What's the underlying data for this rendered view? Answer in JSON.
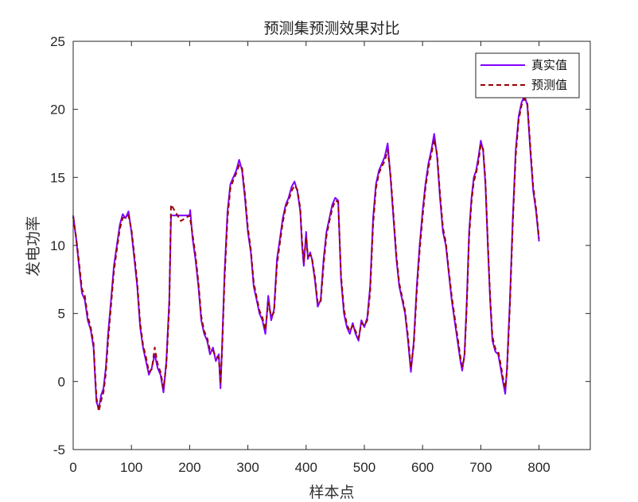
{
  "chart_data": {
    "type": "line",
    "title": "预测集预测效果对比",
    "xlabel": "样本点",
    "ylabel": "发电功率",
    "xlim": [
      0,
      888
    ],
    "ylim": [
      -5,
      25
    ],
    "xticks": [
      0,
      100,
      200,
      300,
      400,
      500,
      600,
      700,
      800
    ],
    "yticks": [
      -5,
      0,
      5,
      10,
      15,
      20,
      25
    ],
    "grid": false,
    "legend_position": "top-right",
    "series": [
      {
        "name": "真实值",
        "color": "#8000ff",
        "style": "solid",
        "points": [
          [
            0,
            12.2
          ],
          [
            5,
            10.5
          ],
          [
            10,
            8.5
          ],
          [
            15,
            6.5
          ],
          [
            20,
            6
          ],
          [
            25,
            4.5
          ],
          [
            30,
            3.8
          ],
          [
            35,
            2.5
          ],
          [
            38,
            0
          ],
          [
            40,
            -1.5
          ],
          [
            44,
            -2
          ],
          [
            48,
            -1
          ],
          [
            52,
            -0.5
          ],
          [
            56,
            1
          ],
          [
            60,
            3.5
          ],
          [
            65,
            6
          ],
          [
            70,
            8.5
          ],
          [
            75,
            10
          ],
          [
            80,
            11.5
          ],
          [
            85,
            12.3
          ],
          [
            90,
            12
          ],
          [
            95,
            12.5
          ],
          [
            100,
            11
          ],
          [
            105,
            9
          ],
          [
            110,
            7
          ],
          [
            115,
            4
          ],
          [
            120,
            2.5
          ],
          [
            125,
            1.5
          ],
          [
            130,
            0.5
          ],
          [
            135,
            1
          ],
          [
            140,
            2
          ],
          [
            145,
            1
          ],
          [
            150,
            0.5
          ],
          [
            155,
            -0.8
          ],
          [
            160,
            1.5
          ],
          [
            165,
            6
          ],
          [
            168,
            12.2
          ],
          [
            200,
            12.2
          ],
          [
            201,
            12.6
          ],
          [
            205,
            10.5
          ],
          [
            210,
            9
          ],
          [
            215,
            7
          ],
          [
            220,
            4.5
          ],
          [
            225,
            3.5
          ],
          [
            230,
            3
          ],
          [
            235,
            2
          ],
          [
            240,
            2.5
          ],
          [
            245,
            1.5
          ],
          [
            250,
            2
          ],
          [
            253,
            -0.5
          ],
          [
            256,
            3
          ],
          [
            260,
            8
          ],
          [
            265,
            12.5
          ],
          [
            270,
            14.5
          ],
          [
            275,
            15
          ],
          [
            280,
            15.5
          ],
          [
            285,
            16.3
          ],
          [
            290,
            15.5
          ],
          [
            295,
            13.5
          ],
          [
            300,
            11
          ],
          [
            305,
            9.5
          ],
          [
            310,
            7
          ],
          [
            315,
            6
          ],
          [
            320,
            5
          ],
          [
            325,
            4.5
          ],
          [
            330,
            3.5
          ],
          [
            335,
            6.3
          ],
          [
            340,
            4.5
          ],
          [
            345,
            5.3
          ],
          [
            350,
            9
          ],
          [
            355,
            10.5
          ],
          [
            360,
            12
          ],
          [
            365,
            13
          ],
          [
            370,
            13.5
          ],
          [
            375,
            14.3
          ],
          [
            380,
            14.7
          ],
          [
            385,
            14
          ],
          [
            390,
            12.5
          ],
          [
            393,
            10
          ],
          [
            396,
            8.5
          ],
          [
            400,
            11
          ],
          [
            403,
            9
          ],
          [
            407,
            9.5
          ],
          [
            410,
            9
          ],
          [
            415,
            7.5
          ],
          [
            420,
            5.5
          ],
          [
            425,
            6
          ],
          [
            430,
            9
          ],
          [
            435,
            11
          ],
          [
            440,
            12
          ],
          [
            445,
            13
          ],
          [
            450,
            13.5
          ],
          [
            455,
            13.3
          ],
          [
            460,
            7.5
          ],
          [
            465,
            5
          ],
          [
            470,
            4
          ],
          [
            475,
            3.5
          ],
          [
            480,
            4.3
          ],
          [
            485,
            3.5
          ],
          [
            490,
            3
          ],
          [
            495,
            4.5
          ],
          [
            500,
            4
          ],
          [
            505,
            4.7
          ],
          [
            510,
            7
          ],
          [
            515,
            12
          ],
          [
            520,
            14.5
          ],
          [
            525,
            15.5
          ],
          [
            530,
            16
          ],
          [
            535,
            16.5
          ],
          [
            540,
            17.5
          ],
          [
            545,
            15
          ],
          [
            550,
            12
          ],
          [
            555,
            9
          ],
          [
            560,
            7
          ],
          [
            565,
            6
          ],
          [
            570,
            5
          ],
          [
            575,
            3
          ],
          [
            580,
            0.7
          ],
          [
            585,
            3
          ],
          [
            590,
            7
          ],
          [
            595,
            10
          ],
          [
            600,
            12.5
          ],
          [
            605,
            14.5
          ],
          [
            610,
            16
          ],
          [
            615,
            17
          ],
          [
            620,
            18.2
          ],
          [
            625,
            16.5
          ],
          [
            630,
            13.5
          ],
          [
            635,
            11
          ],
          [
            640,
            10
          ],
          [
            645,
            8
          ],
          [
            650,
            6
          ],
          [
            655,
            4.5
          ],
          [
            660,
            3
          ],
          [
            665,
            1.5
          ],
          [
            668,
            0.8
          ],
          [
            672,
            2
          ],
          [
            676,
            6
          ],
          [
            680,
            11
          ],
          [
            684,
            13.5
          ],
          [
            688,
            15
          ],
          [
            692,
            15.5
          ],
          [
            696,
            16.5
          ],
          [
            700,
            17.7
          ],
          [
            704,
            17
          ],
          [
            708,
            14.5
          ],
          [
            712,
            10
          ],
          [
            716,
            6
          ],
          [
            720,
            3
          ],
          [
            725,
            2.2
          ],
          [
            730,
            2
          ],
          [
            734,
            1
          ],
          [
            738,
            0
          ],
          [
            742,
            -0.9
          ],
          [
            745,
            1
          ],
          [
            750,
            6
          ],
          [
            755,
            12
          ],
          [
            760,
            17
          ],
          [
            765,
            19.5
          ],
          [
            770,
            20.5
          ],
          [
            775,
            21
          ],
          [
            780,
            20.3
          ],
          [
            785,
            17
          ],
          [
            790,
            14
          ],
          [
            795,
            12.5
          ],
          [
            800,
            10.3
          ]
        ]
      },
      {
        "name": "预测值",
        "color": "#990000",
        "style": "dashed",
        "points": [
          [
            0,
            12.1
          ],
          [
            5,
            10.6
          ],
          [
            10,
            8.8
          ],
          [
            15,
            6.8
          ],
          [
            20,
            6.3
          ],
          [
            25,
            4.8
          ],
          [
            30,
            4
          ],
          [
            35,
            2.8
          ],
          [
            38,
            0.3
          ],
          [
            40,
            -1.2
          ],
          [
            44,
            -2.2
          ],
          [
            48,
            -1.4
          ],
          [
            52,
            -0.8
          ],
          [
            56,
            0.6
          ],
          [
            60,
            3
          ],
          [
            65,
            5.6
          ],
          [
            70,
            8.1
          ],
          [
            75,
            9.7
          ],
          [
            80,
            11.2
          ],
          [
            85,
            12
          ],
          [
            90,
            12.1
          ],
          [
            95,
            12.2
          ],
          [
            100,
            11.2
          ],
          [
            105,
            9.3
          ],
          [
            110,
            7.3
          ],
          [
            115,
            4.3
          ],
          [
            120,
            2.7
          ],
          [
            125,
            1.8
          ],
          [
            130,
            0.7
          ],
          [
            135,
            0.9
          ],
          [
            140,
            2.5
          ],
          [
            145,
            1.3
          ],
          [
            150,
            0.7
          ],
          [
            155,
            -0.5
          ],
          [
            160,
            1.2
          ],
          [
            165,
            5.5
          ],
          [
            168,
            13
          ],
          [
            175,
            12.5
          ],
          [
            185,
            11.8
          ],
          [
            200,
            12.2
          ],
          [
            205,
            10.8
          ],
          [
            210,
            9.3
          ],
          [
            215,
            7.3
          ],
          [
            220,
            4.8
          ],
          [
            225,
            3.7
          ],
          [
            230,
            3.2
          ],
          [
            235,
            2.3
          ],
          [
            240,
            2.3
          ],
          [
            245,
            1.8
          ],
          [
            250,
            1.8
          ],
          [
            253,
            -0.2
          ],
          [
            256,
            2.6
          ],
          [
            260,
            7.5
          ],
          [
            265,
            12
          ],
          [
            270,
            14.2
          ],
          [
            275,
            14.8
          ],
          [
            280,
            15.3
          ],
          [
            285,
            15.9
          ],
          [
            290,
            15.7
          ],
          [
            295,
            13.8
          ],
          [
            300,
            11.3
          ],
          [
            305,
            9.7
          ],
          [
            310,
            7.3
          ],
          [
            315,
            6.2
          ],
          [
            320,
            5.2
          ],
          [
            325,
            4.7
          ],
          [
            330,
            3.8
          ],
          [
            335,
            5.8
          ],
          [
            340,
            4.8
          ],
          [
            345,
            5.1
          ],
          [
            350,
            8.6
          ],
          [
            355,
            10.2
          ],
          [
            360,
            11.7
          ],
          [
            365,
            12.8
          ],
          [
            370,
            13.3
          ],
          [
            375,
            14
          ],
          [
            380,
            14.4
          ],
          [
            385,
            14.1
          ],
          [
            390,
            12.7
          ],
          [
            393,
            10.3
          ],
          [
            396,
            8.8
          ],
          [
            400,
            10.6
          ],
          [
            403,
            9.2
          ],
          [
            407,
            9.3
          ],
          [
            410,
            9.1
          ],
          [
            415,
            7.7
          ],
          [
            420,
            5.8
          ],
          [
            425,
            5.8
          ],
          [
            430,
            8.6
          ],
          [
            435,
            10.7
          ],
          [
            440,
            11.8
          ],
          [
            445,
            12.7
          ],
          [
            450,
            13.3
          ],
          [
            455,
            13.2
          ],
          [
            460,
            7.8
          ],
          [
            465,
            5.3
          ],
          [
            470,
            4.2
          ],
          [
            475,
            3.7
          ],
          [
            480,
            4.1
          ],
          [
            485,
            3.7
          ],
          [
            490,
            3.2
          ],
          [
            495,
            4.3
          ],
          [
            500,
            4.1
          ],
          [
            505,
            4.5
          ],
          [
            510,
            6.6
          ],
          [
            515,
            11.5
          ],
          [
            520,
            14.2
          ],
          [
            525,
            15.3
          ],
          [
            530,
            15.8
          ],
          [
            535,
            16.2
          ],
          [
            540,
            17
          ],
          [
            545,
            15.2
          ],
          [
            550,
            12.3
          ],
          [
            555,
            9.3
          ],
          [
            560,
            7.2
          ],
          [
            565,
            6.2
          ],
          [
            570,
            5.2
          ],
          [
            575,
            3.3
          ],
          [
            580,
            1
          ],
          [
            585,
            2.7
          ],
          [
            590,
            6.6
          ],
          [
            595,
            9.6
          ],
          [
            600,
            12.1
          ],
          [
            605,
            14.2
          ],
          [
            610,
            15.7
          ],
          [
            615,
            16.7
          ],
          [
            620,
            17.8
          ],
          [
            625,
            16.7
          ],
          [
            630,
            13.8
          ],
          [
            635,
            11.3
          ],
          [
            640,
            10.2
          ],
          [
            645,
            8.2
          ],
          [
            650,
            6.3
          ],
          [
            655,
            4.8
          ],
          [
            660,
            3.3
          ],
          [
            665,
            1.8
          ],
          [
            668,
            1.1
          ],
          [
            672,
            1.8
          ],
          [
            676,
            5.6
          ],
          [
            680,
            10.6
          ],
          [
            684,
            13.2
          ],
          [
            688,
            14.7
          ],
          [
            692,
            15.3
          ],
          [
            696,
            16.2
          ],
          [
            700,
            17.4
          ],
          [
            704,
            17.1
          ],
          [
            708,
            14.8
          ],
          [
            712,
            10.3
          ],
          [
            716,
            6.3
          ],
          [
            720,
            3.3
          ],
          [
            725,
            2.4
          ],
          [
            730,
            2.2
          ],
          [
            734,
            1.3
          ],
          [
            738,
            0.3
          ],
          [
            742,
            -0.5
          ],
          [
            745,
            0.7
          ],
          [
            750,
            5.6
          ],
          [
            755,
            11.6
          ],
          [
            760,
            16.6
          ],
          [
            765,
            19.2
          ],
          [
            770,
            20.3
          ],
          [
            775,
            20.8
          ],
          [
            780,
            20.5
          ],
          [
            785,
            17.3
          ],
          [
            790,
            14.3
          ],
          [
            795,
            12.7
          ],
          [
            800,
            10.5
          ]
        ]
      }
    ]
  }
}
